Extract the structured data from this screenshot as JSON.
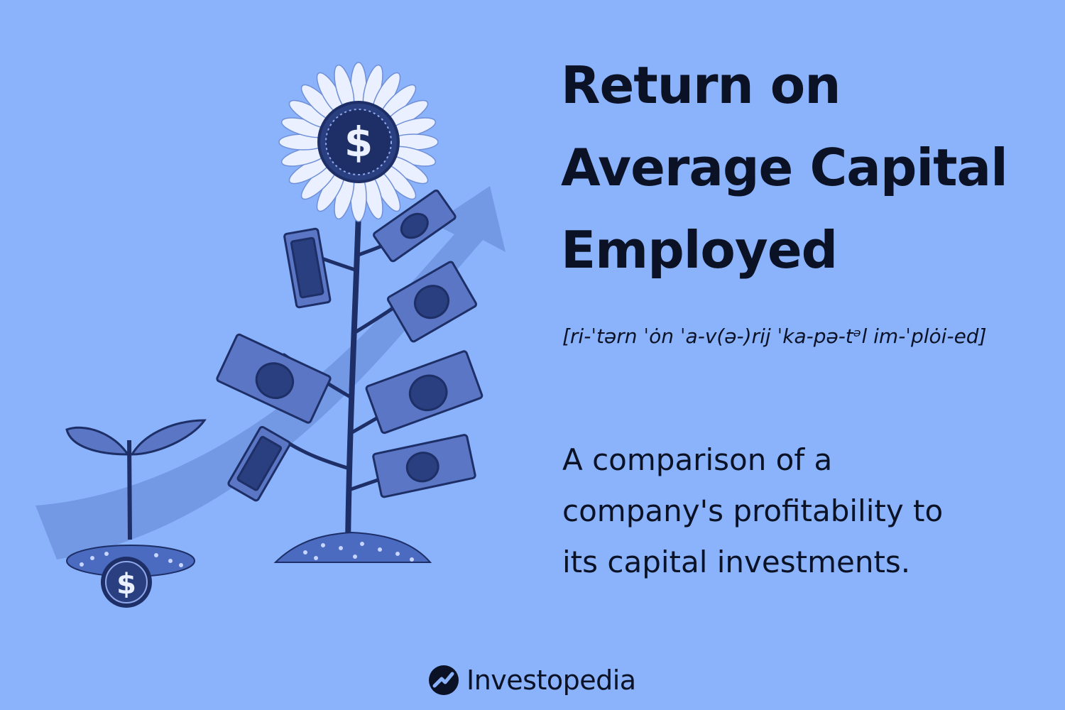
{
  "title": {
    "line1": "Return on",
    "line2": "Average Capital",
    "line3": "Employed"
  },
  "pronunciation": "[ri-ˈtərn ˈȯn ˈa-v(ə-)rij ˈka-pə-tᵊl im-ˈplȯi-ed]",
  "definition": {
    "line1": "A comparison of a",
    "line2": "company's profitability to",
    "line3": "its capital investments."
  },
  "brand": {
    "name": "Investopedia"
  },
  "illustration": {
    "seedling_coin_symbol": "$",
    "flower_center_symbol": "$"
  },
  "colors": {
    "background": "#8bb3fb",
    "text": "#0b1226",
    "illustration_dark": "#1d2f66",
    "illustration_mid": "#4a6bc0",
    "petal": "#eaf0ff"
  }
}
